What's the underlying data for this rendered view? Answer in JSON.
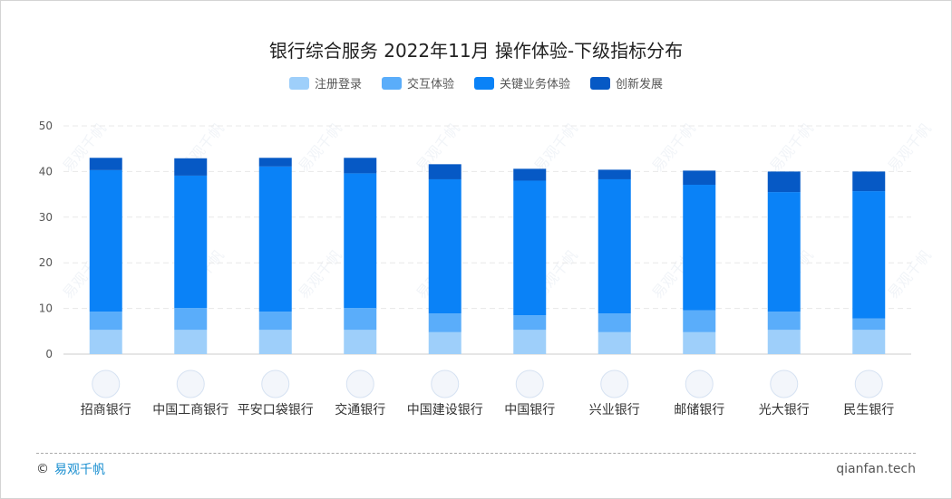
{
  "title": "银行综合服务 2022年11月 操作体验-下级指标分布",
  "colors": {
    "series": [
      "#9ecffa",
      "#5aadfa",
      "#0a82f7",
      "#0659c5"
    ],
    "grid": "#e8e8e8",
    "axis": "#ccc",
    "tick_text": "#555",
    "footer_brand": "#1a8fd0"
  },
  "chart_data": {
    "type": "bar",
    "stacked": true,
    "title": "银行综合服务 2022年11月 操作体验-下级指标分布",
    "categories": [
      "招商银行",
      "中国工商银行",
      "平安口袋银行",
      "交通银行",
      "中国建设银行",
      "中国银行",
      "兴业银行",
      "邮储银行",
      "光大银行",
      "民生银行"
    ],
    "series": [
      {
        "name": "注册登录",
        "values": [
          5.3,
          5.3,
          5.3,
          5.3,
          4.8,
          5.3,
          4.8,
          4.8,
          5.3,
          5.3
        ]
      },
      {
        "name": "交互体验",
        "values": [
          4.0,
          4.8,
          4.0,
          4.8,
          4.1,
          3.2,
          4.1,
          4.8,
          4.0,
          2.5
        ]
      },
      {
        "name": "关键业务体验",
        "values": [
          31.0,
          29.0,
          31.8,
          29.5,
          29.4,
          29.5,
          29.4,
          27.5,
          26.2,
          27.9
        ]
      },
      {
        "name": "创新发展",
        "values": [
          2.7,
          3.8,
          1.9,
          3.4,
          3.3,
          2.6,
          2.1,
          3.1,
          4.5,
          4.3
        ]
      }
    ],
    "ylim": [
      0,
      50
    ],
    "yticks": [
      0,
      10,
      20,
      30,
      40,
      50
    ],
    "grid": true,
    "legend_position": "top-center",
    "bank_icons": [
      "cmb-logo-icon",
      "icbc-logo-icon",
      "pingan-logo-icon",
      "bocom-logo-icon",
      "ccb-logo-icon",
      "boc-logo-icon",
      "cib-logo-icon",
      "psbc-logo-icon",
      "ceb-logo-icon",
      "cmbc-logo-icon"
    ]
  },
  "footer": {
    "copyright_symbol": "©",
    "brand": "易观千帆",
    "site": "qianfan.tech"
  },
  "watermark_text": "易观千帆"
}
